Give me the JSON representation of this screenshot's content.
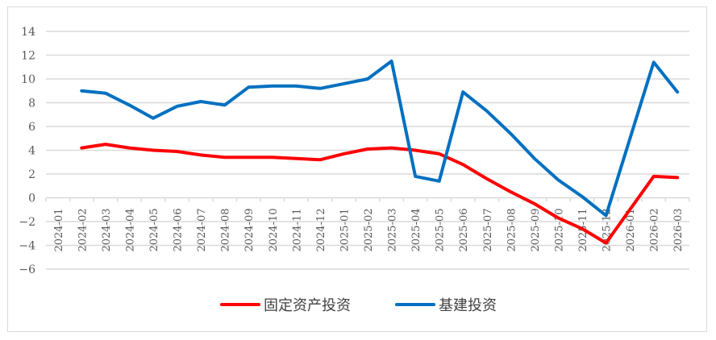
{
  "chart_data": {
    "type": "line",
    "title": "",
    "xlabel": "",
    "ylabel": "",
    "ylim": [
      -6,
      14
    ],
    "yticks": [
      "14",
      "12",
      "10",
      "8",
      "6",
      "4",
      "2",
      "0",
      "-2",
      "-4",
      "-6"
    ],
    "grid": true,
    "legend_position": "bottom",
    "categories": [
      "2024-01",
      "2024-02",
      "2024-03",
      "2024-04",
      "2024-05",
      "2024-06",
      "2024-07",
      "2024-08",
      "2024-09",
      "2024-10",
      "2024-11",
      "2024-12",
      "2025-01",
      "2025-02",
      "2025-03",
      "2025-04",
      "2025-05",
      "2025-06",
      "2025-07",
      "2025-08",
      "2025-09",
      "2025-10",
      "2025-11",
      "2025-12",
      "2026-01",
      "2026-02",
      "2026-03"
    ],
    "series": [
      {
        "name": "固定资产投资",
        "color": "#ff0000",
        "values": [
          null,
          4.2,
          4.5,
          4.2,
          4.0,
          3.9,
          3.6,
          3.4,
          3.4,
          3.4,
          3.3,
          3.2,
          3.7,
          4.1,
          4.2,
          4.0,
          3.7,
          2.8,
          1.6,
          0.5,
          -0.5,
          -1.7,
          -2.6,
          -3.8,
          null,
          1.8,
          1.7
        ]
      },
      {
        "name": "基建投资",
        "color": "#0070c0",
        "values": [
          null,
          9.0,
          8.8,
          7.8,
          6.7,
          7.7,
          8.1,
          7.8,
          9.3,
          9.4,
          9.4,
          9.2,
          9.6,
          10.0,
          11.5,
          1.8,
          1.4,
          8.9,
          7.3,
          5.4,
          3.3,
          1.5,
          0.1,
          -1.5,
          null,
          11.4,
          8.9
        ]
      }
    ]
  }
}
